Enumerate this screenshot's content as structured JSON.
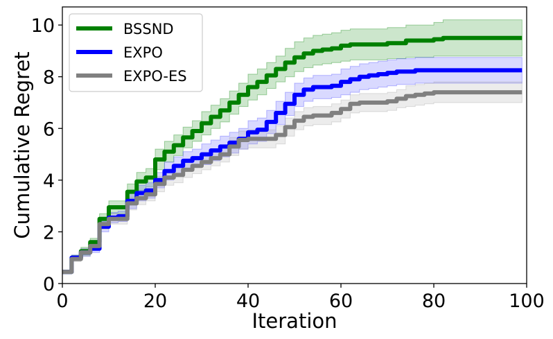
{
  "chart_data": {
    "type": "line",
    "title": "",
    "xlabel": "Iteration",
    "ylabel": "Cumulative Regret",
    "xlim": [
      0,
      100
    ],
    "ylim": [
      0,
      10.7
    ],
    "xticks": [
      0,
      20,
      40,
      60,
      80,
      100
    ],
    "yticks": [
      0,
      2,
      4,
      6,
      8,
      10
    ],
    "grid": false,
    "legend_position": "top-left",
    "x": [
      0,
      2,
      4,
      6,
      8,
      10,
      12,
      14,
      16,
      18,
      20,
      22,
      24,
      26,
      28,
      30,
      32,
      34,
      36,
      38,
      40,
      42,
      44,
      46,
      48,
      50,
      52,
      54,
      56,
      58,
      60,
      62,
      64,
      66,
      68,
      70,
      72,
      74,
      76,
      78,
      80,
      82,
      84,
      86,
      88,
      90,
      92,
      94,
      96,
      98,
      99
    ],
    "series": [
      {
        "name": "BSSND",
        "color": "#008000",
        "band_color": "#008000",
        "values": [
          0.45,
          1.0,
          1.25,
          1.6,
          2.5,
          2.95,
          2.95,
          3.55,
          3.95,
          4.1,
          4.8,
          5.1,
          5.35,
          5.65,
          5.9,
          6.2,
          6.45,
          6.7,
          7.0,
          7.3,
          7.6,
          7.8,
          8.05,
          8.3,
          8.55,
          8.75,
          8.9,
          9.0,
          9.05,
          9.1,
          9.2,
          9.25,
          9.25,
          9.25,
          9.25,
          9.3,
          9.3,
          9.4,
          9.4,
          9.4,
          9.45,
          9.5,
          9.5,
          9.5,
          9.5,
          9.5,
          9.5,
          9.5,
          9.5,
          9.5,
          9.5
        ],
        "lower": [
          0.4,
          0.9,
          1.1,
          1.45,
          2.3,
          2.7,
          2.7,
          3.25,
          3.6,
          3.75,
          4.4,
          4.7,
          4.95,
          5.25,
          5.5,
          5.75,
          6.0,
          6.25,
          6.55,
          6.85,
          7.1,
          7.3,
          7.55,
          7.8,
          8.0,
          8.2,
          8.35,
          8.45,
          8.5,
          8.55,
          8.6,
          8.65,
          8.65,
          8.65,
          8.65,
          8.7,
          8.7,
          8.75,
          8.75,
          8.75,
          8.8,
          8.8,
          8.8,
          8.8,
          8.8,
          8.8,
          8.8,
          8.8,
          8.8,
          8.8,
          8.8
        ],
        "upper": [
          0.5,
          1.1,
          1.4,
          1.75,
          2.7,
          3.2,
          3.2,
          3.85,
          4.3,
          4.45,
          5.2,
          5.5,
          5.75,
          6.05,
          6.3,
          6.65,
          6.9,
          7.15,
          7.45,
          7.75,
          8.1,
          8.3,
          8.55,
          8.8,
          9.1,
          9.35,
          9.5,
          9.6,
          9.65,
          9.7,
          9.8,
          9.85,
          9.85,
          9.85,
          9.85,
          9.9,
          9.9,
          10.0,
          10.0,
          10.0,
          10.1,
          10.2,
          10.2,
          10.2,
          10.2,
          10.2,
          10.2,
          10.2,
          10.2,
          10.2,
          10.2
        ]
      },
      {
        "name": "EXPO",
        "color": "#0000ff",
        "band_color": "#4040ff",
        "values": [
          0.45,
          1.0,
          1.2,
          1.35,
          2.2,
          2.55,
          2.6,
          3.2,
          3.5,
          3.6,
          4.0,
          4.35,
          4.55,
          4.75,
          4.85,
          5.0,
          5.15,
          5.3,
          5.45,
          5.6,
          5.85,
          5.95,
          6.25,
          6.6,
          6.95,
          7.3,
          7.5,
          7.6,
          7.6,
          7.65,
          7.8,
          7.9,
          8.0,
          8.05,
          8.1,
          8.15,
          8.2,
          8.2,
          8.25,
          8.25,
          8.25,
          8.25,
          8.25,
          8.25,
          8.25,
          8.25,
          8.25,
          8.25,
          8.25,
          8.25,
          8.25
        ],
        "lower": [
          0.4,
          0.9,
          1.05,
          1.2,
          2.0,
          2.35,
          2.4,
          2.9,
          3.2,
          3.3,
          3.7,
          4.0,
          4.2,
          4.4,
          4.5,
          4.6,
          4.75,
          4.9,
          5.05,
          5.2,
          5.4,
          5.5,
          5.8,
          6.15,
          6.5,
          6.85,
          7.05,
          7.15,
          7.15,
          7.2,
          7.3,
          7.4,
          7.5,
          7.55,
          7.6,
          7.65,
          7.7,
          7.7,
          7.75,
          7.75,
          7.75,
          7.75,
          7.75,
          7.75,
          7.75,
          7.75,
          7.75,
          7.75,
          7.75,
          7.75,
          7.75
        ],
        "upper": [
          0.5,
          1.1,
          1.35,
          1.5,
          2.4,
          2.75,
          2.8,
          3.5,
          3.8,
          3.9,
          4.3,
          4.7,
          4.9,
          5.1,
          5.2,
          5.4,
          5.55,
          5.7,
          5.85,
          6.0,
          6.3,
          6.4,
          6.7,
          7.05,
          7.4,
          7.75,
          7.95,
          8.05,
          8.05,
          8.1,
          8.3,
          8.4,
          8.5,
          8.55,
          8.6,
          8.65,
          8.7,
          8.7,
          8.75,
          8.75,
          8.75,
          8.75,
          8.75,
          8.75,
          8.75,
          8.75,
          8.75,
          8.75,
          8.75,
          8.75,
          8.75
        ]
      },
      {
        "name": "EXPO-ES",
        "color": "#808080",
        "band_color": "#a0a0a0",
        "values": [
          0.45,
          0.95,
          1.2,
          1.45,
          2.3,
          2.5,
          2.5,
          3.1,
          3.3,
          3.45,
          3.85,
          4.1,
          4.2,
          4.4,
          4.55,
          4.7,
          4.85,
          5.0,
          5.3,
          5.55,
          5.6,
          5.6,
          5.6,
          5.75,
          6.05,
          6.3,
          6.45,
          6.5,
          6.5,
          6.6,
          6.75,
          6.95,
          7.0,
          7.0,
          7.0,
          7.05,
          7.15,
          7.25,
          7.3,
          7.35,
          7.4,
          7.4,
          7.4,
          7.4,
          7.4,
          7.4,
          7.4,
          7.4,
          7.4,
          7.4,
          7.4
        ],
        "lower": [
          0.4,
          0.85,
          1.05,
          1.3,
          2.1,
          2.3,
          2.3,
          2.85,
          3.05,
          3.2,
          3.55,
          3.8,
          3.9,
          4.1,
          4.25,
          4.4,
          4.55,
          4.7,
          4.95,
          5.2,
          5.25,
          5.25,
          5.25,
          5.4,
          5.7,
          5.95,
          6.1,
          6.15,
          6.15,
          6.25,
          6.4,
          6.6,
          6.65,
          6.65,
          6.65,
          6.7,
          6.8,
          6.85,
          6.9,
          6.95,
          7.0,
          7.0,
          7.0,
          7.0,
          7.0,
          7.0,
          7.0,
          7.0,
          7.0,
          7.0,
          7.0
        ],
        "upper": [
          0.5,
          1.05,
          1.35,
          1.6,
          2.5,
          2.7,
          2.7,
          3.35,
          3.55,
          3.7,
          4.15,
          4.4,
          4.5,
          4.7,
          4.85,
          5.0,
          5.15,
          5.3,
          5.65,
          5.9,
          5.95,
          5.95,
          5.95,
          6.1,
          6.4,
          6.65,
          6.8,
          6.85,
          6.85,
          6.95,
          7.1,
          7.3,
          7.35,
          7.35,
          7.35,
          7.4,
          7.5,
          7.65,
          7.7,
          7.75,
          7.8,
          7.8,
          7.8,
          7.8,
          7.8,
          7.8,
          7.8,
          7.8,
          7.8,
          7.8,
          7.8
        ]
      }
    ]
  }
}
